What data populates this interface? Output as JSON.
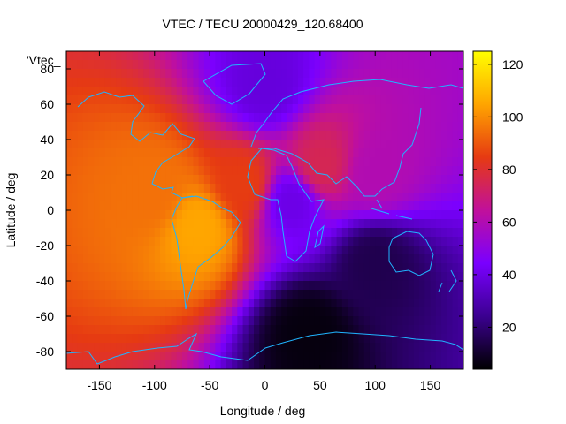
{
  "chart_data": {
    "type": "heatmap",
    "title": "VTEC / TECU 20000429_120.68400",
    "key_label": "'Vtec_",
    "xlabel": "Longitude / deg",
    "ylabel": "Latitude / deg",
    "xlim": [
      -180,
      180
    ],
    "ylim": [
      -90,
      90
    ],
    "xticks": [
      -150,
      -100,
      -50,
      0,
      50,
      100,
      150
    ],
    "yticks": [
      -80,
      -60,
      -40,
      -20,
      0,
      20,
      40,
      60,
      80
    ],
    "colorbar": {
      "range": [
        4,
        125
      ],
      "ticks": [
        20,
        40,
        60,
        80,
        100,
        120
      ],
      "palette": [
        "#000000",
        "#3b0090",
        "#7a00ff",
        "#c1109b",
        "#e63a12",
        "#ffa500",
        "#ffff00"
      ]
    },
    "field_features": [
      {
        "lon": -100,
        "lat": 10,
        "value": 95
      },
      {
        "lon": -60,
        "lat": -10,
        "value": 105
      },
      {
        "lon": -20,
        "lat": 15,
        "value": 85
      },
      {
        "lon": 50,
        "lat": 25,
        "value": 75
      },
      {
        "lon": 100,
        "lat": 20,
        "value": 60
      },
      {
        "lon": 25,
        "lat": 5,
        "value": 40
      },
      {
        "lon": 100,
        "lat": -30,
        "value": 15
      },
      {
        "lon": 40,
        "lat": -70,
        "value": 6
      },
      {
        "lon": 0,
        "lat": 70,
        "value": 38
      }
    ]
  }
}
